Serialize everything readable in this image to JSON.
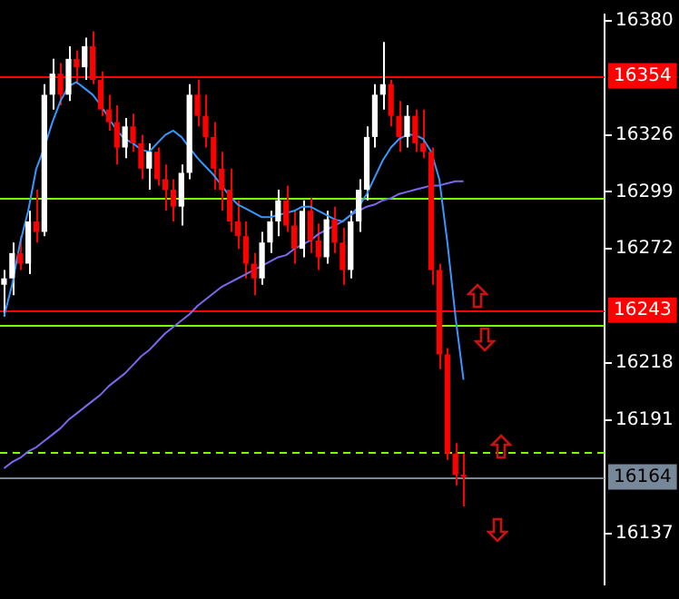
{
  "chart_data": {
    "type": "candlestick",
    "categories": [
      null,
      null,
      null,
      null,
      null,
      null,
      null,
      null,
      null,
      null,
      null,
      null,
      null,
      null,
      null,
      null,
      null,
      null,
      null,
      null,
      null,
      null,
      null,
      null,
      null,
      null,
      null,
      null,
      null,
      null,
      null,
      null,
      null,
      null,
      null,
      null,
      null,
      null,
      null,
      null,
      null,
      null,
      null,
      null,
      null,
      null,
      null,
      null,
      null,
      null,
      null,
      null,
      null,
      null,
      null,
      null,
      null,
      null,
      null,
      null,
      null,
      null,
      null,
      null,
      null,
      null,
      null,
      null,
      null,
      null,
      null,
      null,
      null,
      null,
      null
    ],
    "ohlc": [
      [
        16255,
        16262,
        16240,
        16258
      ],
      [
        16258,
        16275,
        16250,
        16270
      ],
      [
        16270,
        16278,
        16262,
        16265
      ],
      [
        16265,
        16290,
        16260,
        16285
      ],
      [
        16285,
        16300,
        16275,
        16280
      ],
      [
        16280,
        16350,
        16278,
        16345
      ],
      [
        16345,
        16362,
        16338,
        16355
      ],
      [
        16355,
        16360,
        16340,
        16345
      ],
      [
        16345,
        16368,
        16342,
        16362
      ],
      [
        16362,
        16366,
        16350,
        16358
      ],
      [
        16358,
        16372,
        16352,
        16368
      ],
      [
        16368,
        16375,
        16350,
        16352
      ],
      [
        16352,
        16356,
        16335,
        16338
      ],
      [
        16338,
        16345,
        16328,
        16332
      ],
      [
        16332,
        16340,
        16312,
        16320
      ],
      [
        16320,
        16334,
        16315,
        16330
      ],
      [
        16330,
        16336,
        16318,
        16322
      ],
      [
        16322,
        16326,
        16305,
        16310
      ],
      [
        16310,
        16322,
        16300,
        16318
      ],
      [
        16318,
        16320,
        16302,
        16305
      ],
      [
        16305,
        16312,
        16290,
        16300
      ],
      [
        16300,
        16305,
        16285,
        16292
      ],
      [
        16292,
        16312,
        16283,
        16308
      ],
      [
        16308,
        16350,
        16305,
        16345
      ],
      [
        16345,
        16352,
        16330,
        16335
      ],
      [
        16335,
        16345,
        16320,
        16325
      ],
      [
        16325,
        16332,
        16300,
        16310
      ],
      [
        16310,
        16318,
        16290,
        16300
      ],
      [
        16300,
        16310,
        16280,
        16285
      ],
      [
        16285,
        16295,
        16272,
        16278
      ],
      [
        16278,
        16285,
        16258,
        16265
      ],
      [
        16265,
        16270,
        16250,
        16258
      ],
      [
        16258,
        16280,
        16255,
        16275
      ],
      [
        16275,
        16290,
        16270,
        16285
      ],
      [
        16285,
        16300,
        16278,
        16295
      ],
      [
        16295,
        16302,
        16280,
        16283
      ],
      [
        16283,
        16290,
        16265,
        16272
      ],
      [
        16272,
        16295,
        16268,
        16290
      ],
      [
        16290,
        16296,
        16270,
        16276
      ],
      [
        16276,
        16284,
        16262,
        16268
      ],
      [
        16268,
        16290,
        16265,
        16286
      ],
      [
        16286,
        16292,
        16270,
        16275
      ],
      [
        16275,
        16282,
        16255,
        16262
      ],
      [
        16262,
        16290,
        16258,
        16285
      ],
      [
        16285,
        16305,
        16280,
        16300
      ],
      [
        16300,
        16330,
        16295,
        16325
      ],
      [
        16325,
        16350,
        16320,
        16345
      ],
      [
        16345,
        16370,
        16338,
        16350
      ],
      [
        16350,
        16352,
        16330,
        16335
      ],
      [
        16335,
        16342,
        16318,
        16325
      ],
      [
        16325,
        16340,
        16320,
        16335
      ],
      [
        16335,
        16338,
        16318,
        16322
      ],
      [
        16322,
        16338,
        16315,
        16318
      ],
      [
        16318,
        16320,
        16255,
        16262
      ],
      [
        16262,
        16265,
        16215,
        16222
      ],
      [
        16222,
        16225,
        16172,
        16175
      ],
      [
        16175,
        16180,
        16160,
        16165
      ],
      [
        16165,
        16175,
        16150,
        16164
      ],
      null,
      null,
      null,
      null,
      null,
      null,
      null,
      null,
      null,
      null,
      null,
      null,
      null,
      null,
      null,
      null,
      null
    ],
    "colors": [
      "#ffffff",
      "#ffffff",
      "#ff0000",
      "#ffffff",
      "#ff0000",
      "#ffffff",
      "#ffffff",
      "#ff0000",
      "#ffffff",
      "#ff0000",
      "#ffffff",
      "#ff0000",
      "#ff0000",
      "#ff0000",
      "#ff0000",
      "#ffffff",
      "#ff0000",
      "#ff0000",
      "#ffffff",
      "#ff0000",
      "#ff0000",
      "#ff0000",
      "#ffffff",
      "#ffffff",
      "#ff0000",
      "#ff0000",
      "#ff0000",
      "#ff0000",
      "#ff0000",
      "#ff0000",
      "#ff0000",
      "#ff0000",
      "#ffffff",
      "#ffffff",
      "#ffffff",
      "#ff0000",
      "#ff0000",
      "#ffffff",
      "#ff0000",
      "#ff0000",
      "#ffffff",
      "#ff0000",
      "#ff0000",
      "#ffffff",
      "#ffffff",
      "#ffffff",
      "#ffffff",
      "#ffffff",
      "#ff0000",
      "#ff0000",
      "#ffffff",
      "#ff0000",
      "#ff0000",
      "#ff0000",
      "#ff0000",
      "#ff0000",
      "#ff0000",
      "#ff0000",
      null,
      null,
      null,
      null,
      null,
      null,
      null,
      null,
      null,
      null,
      null,
      null,
      null,
      null,
      null,
      null,
      null
    ],
    "series": [
      {
        "type": "line",
        "color": "#3399ff",
        "values": [
          16240,
          16255,
          16275,
          16290,
          16310,
          16320,
          16332,
          16342,
          16349,
          16351,
          16348,
          16345,
          16340,
          16334,
          16328,
          16324,
          16322,
          16319,
          16318,
          16322,
          16326,
          16328,
          16325,
          16320,
          16315,
          16311,
          16307,
          16302,
          16297,
          16293,
          16291,
          16289,
          16287,
          16287,
          16288,
          16289,
          16290,
          16292,
          16292,
          16290,
          16288,
          16286,
          16285,
          16288,
          16292,
          16298,
          16306,
          16314,
          16320,
          16324,
          16326,
          16326,
          16324,
          16318,
          16305,
          16275,
          16240,
          16210,
          null,
          null,
          null,
          null,
          null,
          null,
          null,
          null,
          null,
          null,
          null,
          null,
          null,
          null,
          null,
          null,
          null
        ]
      },
      {
        "type": "line",
        "color": "#7b68ee",
        "values": [
          16168,
          16171,
          16173,
          16176,
          16178,
          16181,
          16184,
          16187,
          16191,
          16194,
          16197,
          16200,
          16203,
          16207,
          16210,
          16213,
          16217,
          16221,
          16224,
          16228,
          16232,
          16235,
          16238,
          16241,
          16245,
          16248,
          16251,
          16254,
          16256,
          16258,
          16260,
          16262,
          16264,
          16266,
          16268,
          16269,
          16272,
          16274,
          16276,
          16279,
          16281,
          16283,
          16285,
          16288,
          16290,
          16292,
          16293,
          16295,
          16296,
          16298,
          16299,
          16300,
          16301,
          16302,
          16302,
          16303,
          16304,
          16304,
          null,
          null,
          null,
          null,
          null,
          null,
          null,
          null,
          null,
          null,
          null,
          null,
          null,
          null,
          null,
          null,
          null
        ]
      }
    ],
    "ylim": [
      16113,
      16383
    ],
    "yticks": [
      16380,
      16326,
      16299,
      16272,
      16218,
      16191,
      16137
    ],
    "tick_labels": "y",
    "grid": false,
    "ref_lines": [
      {
        "axis": "y",
        "value": 16354,
        "label": "16354",
        "color": "#ff0000"
      },
      {
        "axis": "y",
        "value": 16243,
        "label": "16243",
        "color": "#ff0000"
      },
      {
        "axis": "y",
        "value": 16164,
        "label": "16164",
        "color": "#778899"
      },
      {
        "axis": "y",
        "value": 16236,
        "color": "#7cfc00"
      },
      {
        "axis": "y",
        "value": 16296,
        "color": "#7cfc00"
      },
      {
        "axis": "y",
        "value": 16176,
        "color": "#7cfc00",
        "line_style": "dashed"
      }
    ]
  }
}
